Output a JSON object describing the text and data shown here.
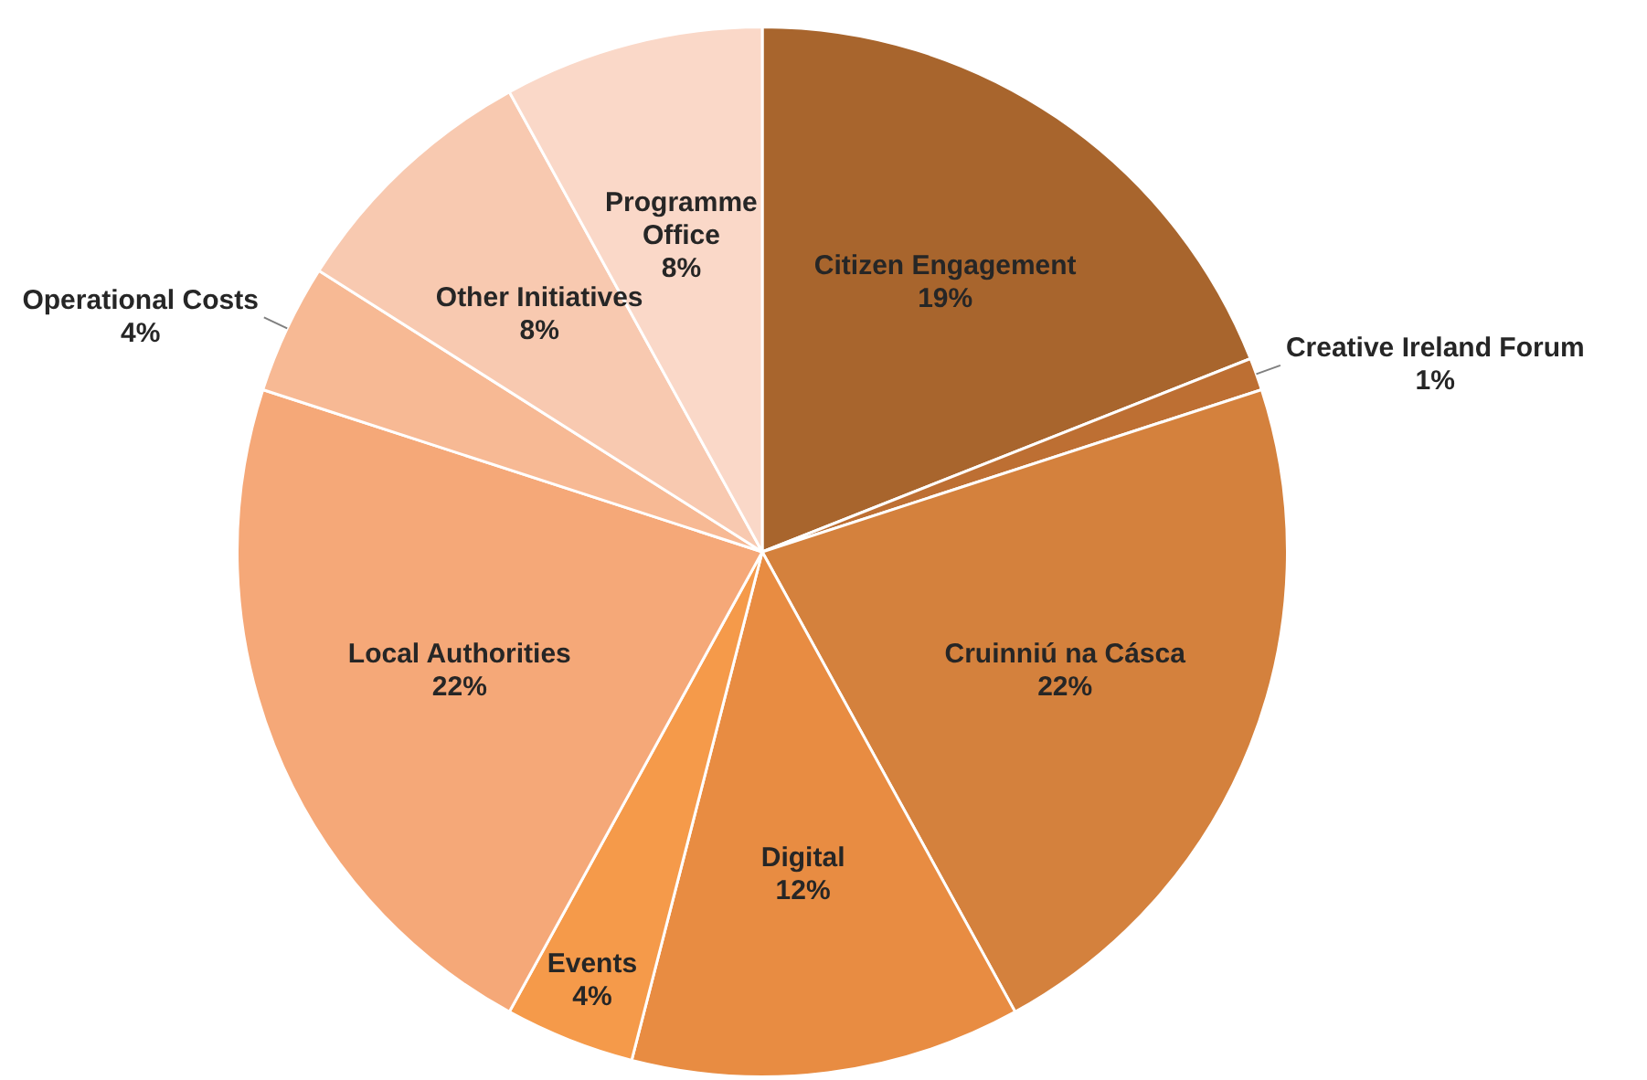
{
  "chart_data": {
    "type": "pie",
    "categories": [
      "Citizen Engagement",
      "Creative Ireland Forum",
      "Cruinniú na Cásca",
      "Digital",
      "Events",
      "Local Authorities",
      "Operational Costs",
      "Other Initiatives",
      "Programme Office"
    ],
    "values": [
      19,
      1,
      22,
      12,
      4,
      22,
      4,
      8,
      8
    ],
    "colors": [
      "#a8652d",
      "#bd6f33",
      "#d4813d",
      "#e88c42",
      "#f59a4a",
      "#f5a878",
      "#f7b994",
      "#f8c9b0",
      "#fad8c8"
    ],
    "value_labels": [
      "19%",
      "1%",
      "22%",
      "12%",
      "4%",
      "22%",
      "4%",
      "8%",
      "8%"
    ],
    "legend": false
  }
}
